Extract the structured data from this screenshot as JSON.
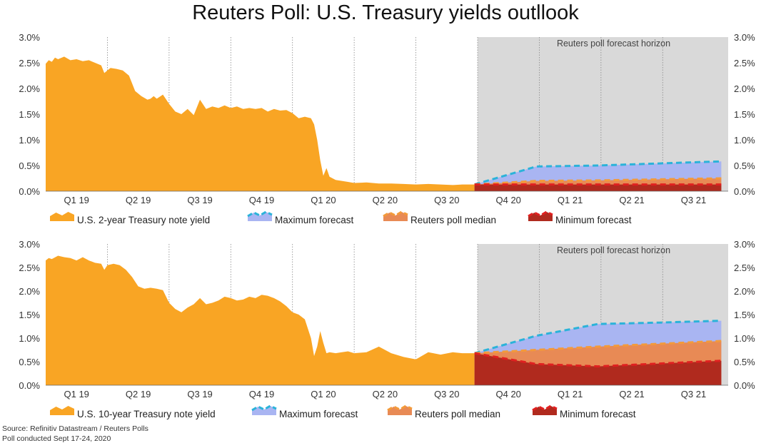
{
  "title": "Reuters Poll: U.S. Treasury yields outllook",
  "source_line1": "Source: Refinitiv Datastream / Reuters Polls",
  "source_line2": "Poll conducted Sept 17-24, 2020",
  "colors": {
    "actual": "#F9A524",
    "max_fill": "#A9B5F2",
    "max_line": "#2BB3D9",
    "median_fill": "#E88A55",
    "median_line": "#F39A3A",
    "min_fill": "#B02A1E",
    "min_line": "#E02020",
    "horizon_bg": "#D9D9D9"
  },
  "chart_data": [
    {
      "type": "area",
      "title": "",
      "horizon_label": "Reuters poll forecast horizon",
      "ylim": [
        0,
        3
      ],
      "y_ticks": [
        "0.0%",
        "0.5%",
        "1.0%",
        "1.5%",
        "2.0%",
        "2.5%",
        "3.0%"
      ],
      "quarters": [
        "Q1 19",
        "Q2 19",
        "Q3 19",
        "Q4 19",
        "Q1 20",
        "Q2 20",
        "Q3 20",
        "Q4 20",
        "Q1 21",
        "Q2 21",
        "Q3 21"
      ],
      "legend": [
        "U.S. 2-year Treasury note yield",
        "Maximum forecast",
        "Reuters poll median",
        "Minimum forecast"
      ],
      "actual": {
        "name": "U.S. 2-year Treasury note yield",
        "x": [
          0,
          0.05,
          0.1,
          0.15,
          0.2,
          0.3,
          0.4,
          0.5,
          0.6,
          0.7,
          0.8,
          0.9,
          0.95,
          1.0,
          1.05,
          1.15,
          1.25,
          1.35,
          1.45,
          1.55,
          1.65,
          1.7,
          1.75,
          1.8,
          1.9,
          2.0,
          2.1,
          2.2,
          2.3,
          2.4,
          2.5,
          2.6,
          2.7,
          2.8,
          2.9,
          3.0,
          3.1,
          3.2,
          3.3,
          3.4,
          3.5,
          3.6,
          3.7,
          3.8,
          3.9,
          4.0,
          4.1,
          4.2,
          4.3,
          4.35,
          4.4,
          4.45,
          4.5,
          4.55,
          4.6,
          4.7,
          4.8,
          4.9,
          5.0,
          5.2,
          5.4,
          5.6,
          5.8,
          6.0,
          6.2,
          6.4,
          6.6,
          6.75,
          6.95
        ],
        "y": [
          2.48,
          2.55,
          2.52,
          2.6,
          2.57,
          2.62,
          2.55,
          2.57,
          2.53,
          2.55,
          2.5,
          2.45,
          2.3,
          2.35,
          2.4,
          2.38,
          2.35,
          2.25,
          1.95,
          1.85,
          1.78,
          1.8,
          1.85,
          1.8,
          1.88,
          1.7,
          1.55,
          1.5,
          1.6,
          1.48,
          1.78,
          1.6,
          1.65,
          1.62,
          1.67,
          1.62,
          1.65,
          1.6,
          1.62,
          1.6,
          1.62,
          1.55,
          1.6,
          1.57,
          1.58,
          1.52,
          1.42,
          1.45,
          1.42,
          1.3,
          1.0,
          0.6,
          0.3,
          0.45,
          0.28,
          0.22,
          0.2,
          0.18,
          0.16,
          0.17,
          0.15,
          0.15,
          0.14,
          0.13,
          0.14,
          0.13,
          0.12,
          0.13,
          0.13
        ]
      },
      "forecast": {
        "x": [
          6.95,
          7.95,
          8.95,
          9.95,
          10.95
        ],
        "max": [
          0.13,
          0.48,
          0.5,
          0.54,
          0.58
        ],
        "median": [
          0.13,
          0.2,
          0.21,
          0.23,
          0.25
        ],
        "min": [
          0.13,
          0.13,
          0.13,
          0.13,
          0.13
        ]
      }
    },
    {
      "type": "area",
      "title": "",
      "horizon_label": "Reuters poll forecast horizon",
      "ylim": [
        0,
        3
      ],
      "y_ticks": [
        "0.0%",
        "0.5%",
        "1.0%",
        "1.5%",
        "2.0%",
        "2.5%",
        "3.0%"
      ],
      "quarters": [
        "Q1 19",
        "Q2 19",
        "Q3 19",
        "Q4 19",
        "Q1 20",
        "Q2 20",
        "Q3 20",
        "Q4 20",
        "Q1 21",
        "Q2 21",
        "Q3 21"
      ],
      "legend": [
        "U.S. 10-year Treasury note yield",
        "Maximum forecast",
        "Reuters poll median",
        "Minimum forecast"
      ],
      "actual": {
        "name": "U.S. 10-year Treasury note yield",
        "x": [
          0,
          0.05,
          0.1,
          0.2,
          0.3,
          0.4,
          0.5,
          0.6,
          0.7,
          0.8,
          0.9,
          0.95,
          1.0,
          1.1,
          1.2,
          1.3,
          1.4,
          1.5,
          1.6,
          1.7,
          1.8,
          1.9,
          2.0,
          2.1,
          2.2,
          2.3,
          2.4,
          2.5,
          2.6,
          2.7,
          2.8,
          2.9,
          3.0,
          3.1,
          3.2,
          3.3,
          3.4,
          3.5,
          3.6,
          3.7,
          3.8,
          3.9,
          4.0,
          4.1,
          4.2,
          4.3,
          4.35,
          4.4,
          4.45,
          4.5,
          4.55,
          4.6,
          4.7,
          4.8,
          4.9,
          5.0,
          5.2,
          5.4,
          5.6,
          5.8,
          6.0,
          6.2,
          6.4,
          6.6,
          6.75,
          6.95
        ],
        "y": [
          2.65,
          2.7,
          2.68,
          2.75,
          2.72,
          2.7,
          2.65,
          2.72,
          2.65,
          2.6,
          2.58,
          2.45,
          2.55,
          2.58,
          2.55,
          2.45,
          2.3,
          2.1,
          2.05,
          2.07,
          2.05,
          2.02,
          1.75,
          1.62,
          1.55,
          1.65,
          1.72,
          1.85,
          1.72,
          1.75,
          1.8,
          1.88,
          1.85,
          1.8,
          1.82,
          1.88,
          1.85,
          1.92,
          1.9,
          1.85,
          1.78,
          1.68,
          1.55,
          1.5,
          1.4,
          1.0,
          0.62,
          0.82,
          1.15,
          0.9,
          0.68,
          0.7,
          0.68,
          0.7,
          0.72,
          0.68,
          0.7,
          0.82,
          0.68,
          0.6,
          0.55,
          0.7,
          0.65,
          0.7,
          0.68,
          0.68
        ]
      },
      "forecast": {
        "x": [
          6.95,
          7.95,
          8.95,
          9.95,
          10.95
        ],
        "max": [
          0.68,
          1.05,
          1.3,
          1.33,
          1.37
        ],
        "median": [
          0.68,
          0.75,
          0.82,
          0.88,
          0.94
        ],
        "min": [
          0.68,
          0.45,
          0.4,
          0.46,
          0.52
        ]
      }
    }
  ]
}
